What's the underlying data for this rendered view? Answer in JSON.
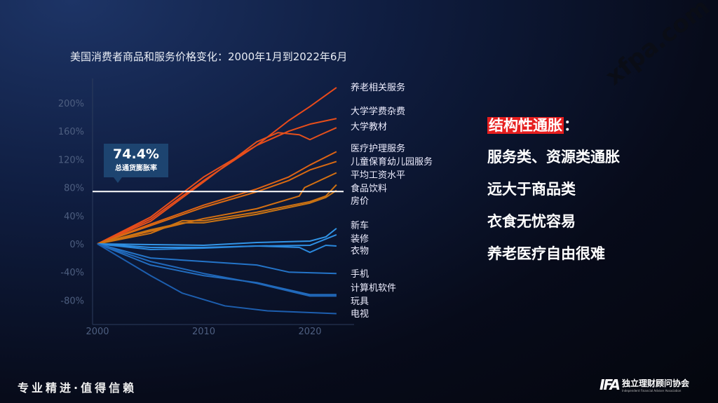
{
  "watermark": "xfpa.com",
  "chart_data": {
    "type": "line",
    "title": "美国消费者商品和服务价格变化：2000年1月到2022年6月",
    "xlabel": "",
    "ylabel": "",
    "xlim": [
      2000,
      2023
    ],
    "ylim": [
      -100,
      230
    ],
    "xticks": [
      2000,
      2010,
      2020
    ],
    "yticks": [
      -80,
      -40,
      0,
      40,
      80,
      120,
      160,
      200
    ],
    "ytick_labels": [
      "-80%",
      "-40%",
      "0%",
      "40%",
      "80%",
      "120%",
      "160%",
      "200%"
    ],
    "reference_line": {
      "value": 74.4,
      "value_label": "74.4%",
      "label": "总通货膨胀率"
    },
    "series": [
      {
        "name": "养老相关服务",
        "color": "#ea4a1a",
        "points": [
          [
            2000,
            0
          ],
          [
            2005,
            35
          ],
          [
            2010,
            90
          ],
          [
            2015,
            140
          ],
          [
            2018,
            175
          ],
          [
            2020,
            195
          ],
          [
            2022.5,
            222
          ]
        ]
      },
      {
        "name": "大学学费杂费",
        "color": "#e84e1a",
        "points": [
          [
            2000,
            0
          ],
          [
            2005,
            38
          ],
          [
            2010,
            95
          ],
          [
            2015,
            140
          ],
          [
            2018,
            160
          ],
          [
            2020,
            170
          ],
          [
            2022.5,
            178
          ]
        ]
      },
      {
        "name": "大学教材",
        "color": "#e4501c",
        "points": [
          [
            2000,
            0
          ],
          [
            2005,
            32
          ],
          [
            2010,
            88
          ],
          [
            2015,
            145
          ],
          [
            2017,
            158
          ],
          [
            2019,
            155
          ],
          [
            2020,
            148
          ],
          [
            2021,
            155
          ],
          [
            2022.5,
            165
          ]
        ]
      },
      {
        "name": "医疗护理服务",
        "color": "#de6414",
        "points": [
          [
            2000,
            0
          ],
          [
            2005,
            28
          ],
          [
            2010,
            55
          ],
          [
            2015,
            78
          ],
          [
            2018,
            95
          ],
          [
            2020,
            112
          ],
          [
            2022.5,
            131
          ]
        ]
      },
      {
        "name": "儿童保育幼儿园服务",
        "color": "#d96a12",
        "points": [
          [
            2000,
            0
          ],
          [
            2005,
            26
          ],
          [
            2010,
            52
          ],
          [
            2015,
            74
          ],
          [
            2018,
            90
          ],
          [
            2020,
            105
          ],
          [
            2022.5,
            117
          ]
        ]
      },
      {
        "name": "平均工资水平",
        "color": "#d47012",
        "points": [
          [
            2000,
            0
          ],
          [
            2005,
            18
          ],
          [
            2010,
            36
          ],
          [
            2015,
            50
          ],
          [
            2019,
            68
          ],
          [
            2019.5,
            80
          ],
          [
            2022.5,
            101
          ]
        ]
      },
      {
        "name": "食品饮料",
        "color": "#cf7212",
        "points": [
          [
            2000,
            0
          ],
          [
            2005,
            15
          ],
          [
            2008,
            33
          ],
          [
            2010,
            33
          ],
          [
            2015,
            45
          ],
          [
            2020,
            60
          ],
          [
            2021.5,
            68
          ],
          [
            2022.5,
            84
          ]
        ]
      },
      {
        "name": "房价",
        "color": "#c87414",
        "points": [
          [
            2000,
            0
          ],
          [
            2005,
            20
          ],
          [
            2008,
            30
          ],
          [
            2010,
            30
          ],
          [
            2015,
            42
          ],
          [
            2020,
            58
          ],
          [
            2021.5,
            66
          ],
          [
            2022.5,
            76
          ]
        ]
      },
      {
        "name": "新车",
        "color": "#3294e6",
        "points": [
          [
            2000,
            0
          ],
          [
            2010,
            -2
          ],
          [
            2015,
            2
          ],
          [
            2020,
            4
          ],
          [
            2021.5,
            10
          ],
          [
            2022.5,
            22
          ]
        ]
      },
      {
        "name": "装修",
        "color": "#2e8ee2",
        "points": [
          [
            2000,
            0
          ],
          [
            2005,
            -5
          ],
          [
            2010,
            -5
          ],
          [
            2015,
            -3
          ],
          [
            2020,
            -2
          ],
          [
            2022.5,
            13
          ]
        ]
      },
      {
        "name": "衣物",
        "color": "#2a88dc",
        "points": [
          [
            2000,
            0
          ],
          [
            2005,
            -8
          ],
          [
            2010,
            -6
          ],
          [
            2015,
            -3
          ],
          [
            2019,
            -5
          ],
          [
            2020,
            -12
          ],
          [
            2021.5,
            -2
          ],
          [
            2022.5,
            -3
          ]
        ]
      },
      {
        "name": "手机",
        "color": "#2474c8",
        "points": [
          [
            2000,
            0
          ],
          [
            2005,
            -20
          ],
          [
            2010,
            -25
          ],
          [
            2015,
            -30
          ],
          [
            2018,
            -40
          ],
          [
            2022.5,
            -42
          ]
        ]
      },
      {
        "name": "计算机软件",
        "color": "#226cbe",
        "points": [
          [
            2000,
            0
          ],
          [
            2005,
            -30
          ],
          [
            2010,
            -45
          ],
          [
            2015,
            -55
          ],
          [
            2020,
            -72
          ],
          [
            2022.5,
            -72
          ]
        ]
      },
      {
        "name": "玩具",
        "color": "#2068ba",
        "points": [
          [
            2000,
            0
          ],
          [
            2005,
            -25
          ],
          [
            2010,
            -42
          ],
          [
            2015,
            -56
          ],
          [
            2020,
            -74
          ],
          [
            2022.5,
            -74
          ]
        ]
      },
      {
        "name": "电视",
        "color": "#1d5eae",
        "points": [
          [
            2000,
            0
          ],
          [
            2005,
            -45
          ],
          [
            2008,
            -70
          ],
          [
            2012,
            -88
          ],
          [
            2016,
            -95
          ],
          [
            2022.5,
            -99
          ]
        ]
      }
    ]
  },
  "right_panel": {
    "highlight": "结构性通胀",
    "colon": "：",
    "lines": [
      "服务类、资源类通胀",
      "远大于商品类",
      "衣食无忧容易",
      "养老医疗自由很难"
    ]
  },
  "footer": {
    "slogan": "专业精进·值得信赖",
    "logo_mark": "IFA",
    "logo_cn": "独立理财顾问协会",
    "logo_en": "Independent Financial Adviser Association"
  }
}
